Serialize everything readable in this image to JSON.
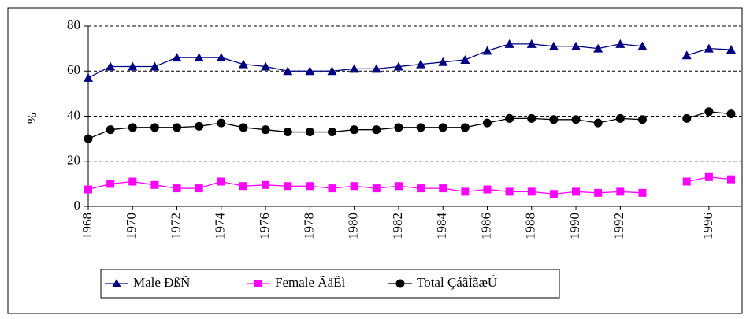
{
  "chart_data": {
    "type": "line",
    "y_label": "%",
    "x": [
      1968,
      1969,
      1970,
      1971,
      1972,
      1973,
      1974,
      1975,
      1976,
      1977,
      1978,
      1979,
      1980,
      1981,
      1982,
      1983,
      1984,
      1985,
      1986,
      1987,
      1988,
      1989,
      1990,
      1991,
      1992,
      1993,
      1994,
      1995,
      1996,
      1997
    ],
    "xlim": [
      1968,
      1997
    ],
    "xticks": [
      1968,
      1970,
      1972,
      1974,
      1976,
      1978,
      1980,
      1982,
      1984,
      1986,
      1988,
      1990,
      1992,
      1996
    ],
    "ylim": [
      0,
      80
    ],
    "yticks": [
      0,
      20,
      40,
      60,
      80
    ],
    "grid": true,
    "legend": "bottom",
    "series": [
      {
        "name": "Male ÐßÑ",
        "color": "#000080",
        "marker": "triangle",
        "values": [
          57,
          62,
          62,
          62,
          66,
          66,
          66,
          63,
          62,
          60,
          60,
          60,
          61,
          61,
          62,
          63,
          64,
          65,
          69,
          72,
          72,
          71,
          71,
          70,
          72,
          71,
          null,
          67,
          70,
          69.5
        ]
      },
      {
        "name": "Female ÃäËì",
        "color": "#ff00ff",
        "marker": "square",
        "values": [
          7.5,
          10,
          11,
          9.5,
          8,
          8,
          11,
          9,
          9.5,
          9,
          9,
          8,
          9,
          8,
          9,
          8,
          8,
          6.5,
          7.5,
          6.5,
          6.5,
          5.5,
          6.5,
          6,
          6.5,
          6,
          null,
          11,
          13,
          12
        ]
      },
      {
        "name": "Total ÇáãÌãæÚ",
        "color": "#000000",
        "marker": "circle",
        "values": [
          30,
          34,
          35,
          35,
          35,
          35.5,
          37,
          35,
          34,
          33,
          33,
          33,
          34,
          34,
          35,
          35,
          35,
          35,
          37,
          39,
          39,
          38.5,
          38.5,
          37,
          39,
          38.5,
          null,
          39,
          42,
          41
        ]
      }
    ]
  }
}
